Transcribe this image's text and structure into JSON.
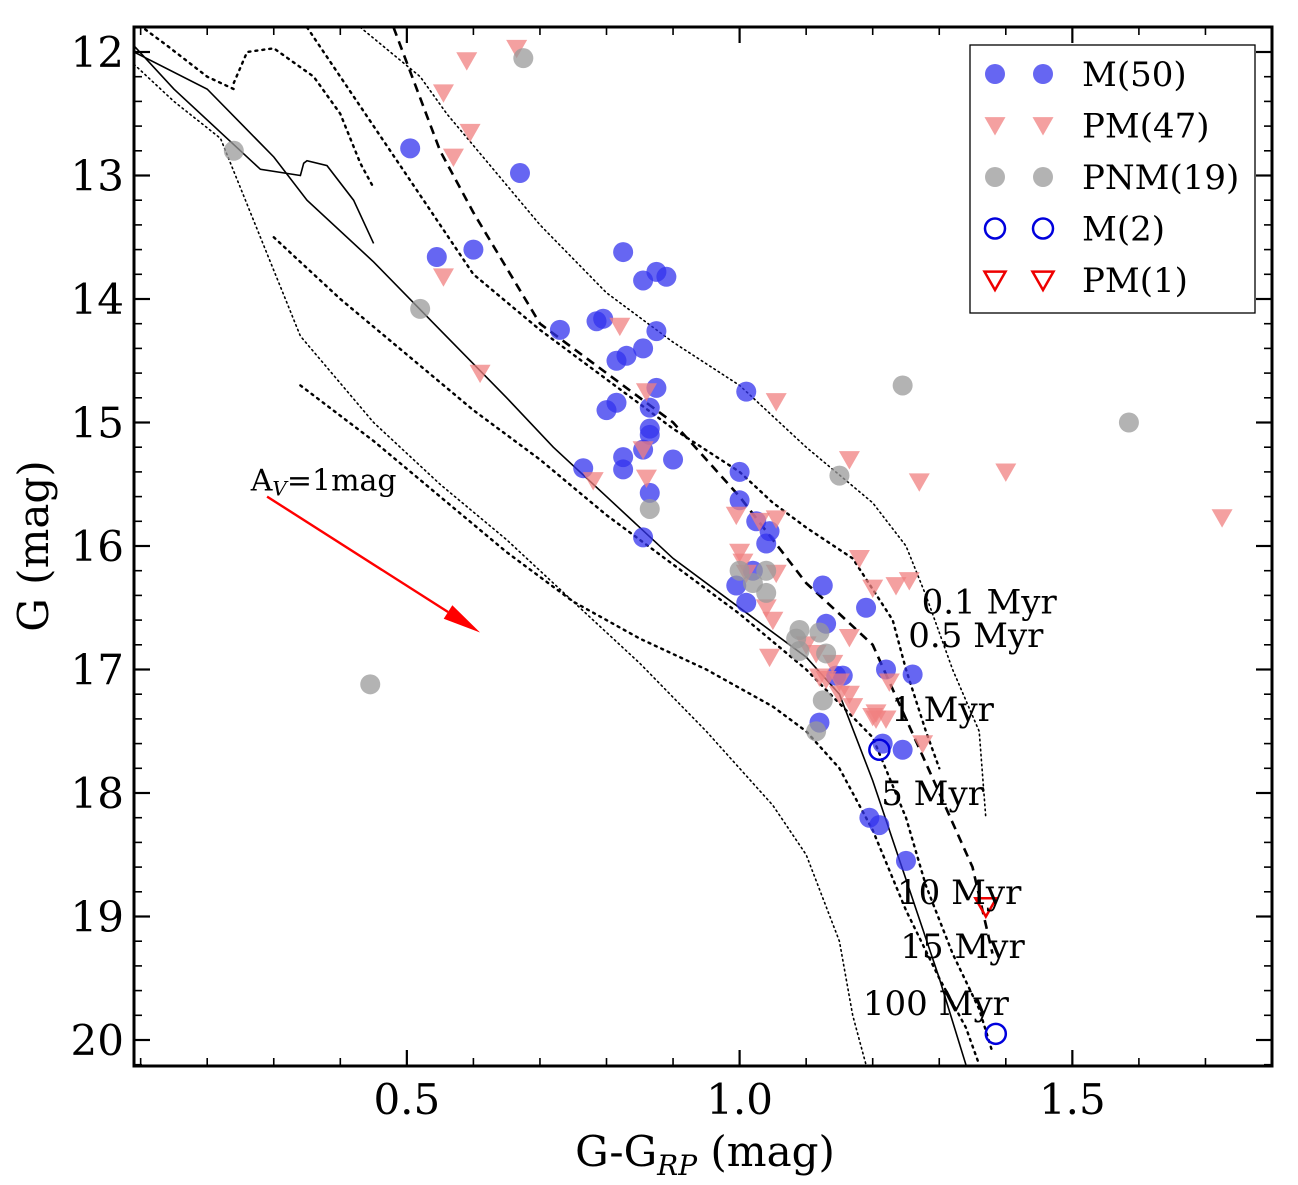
{
  "chart_data": {
    "type": "scatter",
    "title": "",
    "xlabel_main": "G-G",
    "xlabel_sub": "RP",
    "xlabel_unit": " (mag)",
    "ylabel": "G (mag)",
    "xlim": [
      0.09,
      1.8
    ],
    "ylim": [
      20.2,
      11.8
    ],
    "xticks": [
      0.5,
      1.0,
      1.5
    ],
    "xtick_labels": [
      "0.5",
      "1.0",
      "1.5"
    ],
    "yticks": [
      12,
      13,
      14,
      15,
      16,
      17,
      18,
      19,
      20
    ],
    "ytick_labels": [
      "12",
      "13",
      "14",
      "15",
      "16",
      "17",
      "18",
      "19",
      "20"
    ],
    "legend_position": "top-right",
    "series": [
      {
        "name": "M(50)",
        "marker": "circle",
        "filled": true,
        "color": "#3333ee",
        "points": [
          [
            0.505,
            12.78
          ],
          [
            0.67,
            12.98
          ],
          [
            0.545,
            13.66
          ],
          [
            0.6,
            13.6
          ],
          [
            0.825,
            13.62
          ],
          [
            0.855,
            13.85
          ],
          [
            0.875,
            13.78
          ],
          [
            0.89,
            13.82
          ],
          [
            0.73,
            14.25
          ],
          [
            0.785,
            14.18
          ],
          [
            0.795,
            14.16
          ],
          [
            0.875,
            14.26
          ],
          [
            0.83,
            14.46
          ],
          [
            0.815,
            14.5
          ],
          [
            0.855,
            14.4
          ],
          [
            0.8,
            14.9
          ],
          [
            0.815,
            14.84
          ],
          [
            0.865,
            14.88
          ],
          [
            0.875,
            14.72
          ],
          [
            1.01,
            14.75
          ],
          [
            0.865,
            15.05
          ],
          [
            0.865,
            15.1
          ],
          [
            0.855,
            15.22
          ],
          [
            0.825,
            15.28
          ],
          [
            0.825,
            15.38
          ],
          [
            0.765,
            15.37
          ],
          [
            0.9,
            15.3
          ],
          [
            0.865,
            15.57
          ],
          [
            0.855,
            15.93
          ],
          [
            1.0,
            15.4
          ],
          [
            1.0,
            15.63
          ],
          [
            1.025,
            15.8
          ],
          [
            1.045,
            15.88
          ],
          [
            1.04,
            15.98
          ],
          [
            0.995,
            16.32
          ],
          [
            1.02,
            16.2
          ],
          [
            1.01,
            16.46
          ],
          [
            1.125,
            16.32
          ],
          [
            1.19,
            16.5
          ],
          [
            1.13,
            16.63
          ],
          [
            1.155,
            17.05
          ],
          [
            1.22,
            17.0
          ],
          [
            1.26,
            17.04
          ],
          [
            1.12,
            17.43
          ],
          [
            1.215,
            17.6
          ],
          [
            1.245,
            17.65
          ],
          [
            1.195,
            18.2
          ],
          [
            1.21,
            18.26
          ],
          [
            1.25,
            18.55
          ],
          [
            1.145,
            17.05
          ]
        ]
      },
      {
        "name": "PM(47)",
        "marker": "triangle-down",
        "filled": true,
        "color": "#f08080",
        "points": [
          [
            0.555,
            12.33
          ],
          [
            0.59,
            12.07
          ],
          [
            0.665,
            11.97
          ],
          [
            0.57,
            12.85
          ],
          [
            0.595,
            12.65
          ],
          [
            0.555,
            13.82
          ],
          [
            0.61,
            14.6
          ],
          [
            0.82,
            14.22
          ],
          [
            0.86,
            14.75
          ],
          [
            0.855,
            15.22
          ],
          [
            0.86,
            15.45
          ],
          [
            0.78,
            15.47
          ],
          [
            1.055,
            14.83
          ],
          [
            1.165,
            15.3
          ],
          [
            1.4,
            15.4
          ],
          [
            1.27,
            15.48
          ],
          [
            1.725,
            15.77
          ],
          [
            0.995,
            15.75
          ],
          [
            1.03,
            15.8
          ],
          [
            1.055,
            15.78
          ],
          [
            1.0,
            16.05
          ],
          [
            1.005,
            16.13
          ],
          [
            1.01,
            16.22
          ],
          [
            1.055,
            16.22
          ],
          [
            1.18,
            16.1
          ],
          [
            1.2,
            16.34
          ],
          [
            1.235,
            16.32
          ],
          [
            1.255,
            16.28
          ],
          [
            1.04,
            16.5
          ],
          [
            1.05,
            16.6
          ],
          [
            1.045,
            16.9
          ],
          [
            1.1,
            16.8
          ],
          [
            1.115,
            16.87
          ],
          [
            1.12,
            17.06
          ],
          [
            1.165,
            16.74
          ],
          [
            1.14,
            16.95
          ],
          [
            1.15,
            17.1
          ],
          [
            1.165,
            17.2
          ],
          [
            1.17,
            17.3
          ],
          [
            1.205,
            17.4
          ],
          [
            1.22,
            17.4
          ],
          [
            1.2,
            17.38
          ],
          [
            1.225,
            17.1
          ],
          [
            1.275,
            17.6
          ],
          [
            1.15,
            17.2
          ],
          [
            1.13,
            17.08
          ],
          [
            1.205,
            17.35
          ]
        ]
      },
      {
        "name": "PNM(19)",
        "marker": "circle",
        "filled": true,
        "color": "#999999",
        "points": [
          [
            0.24,
            12.8
          ],
          [
            0.675,
            12.05
          ],
          [
            0.52,
            14.08
          ],
          [
            0.445,
            17.12
          ],
          [
            0.865,
            15.7
          ],
          [
            1.245,
            14.7
          ],
          [
            1.15,
            15.43
          ],
          [
            1.585,
            15.0
          ],
          [
            1.0,
            16.2
          ],
          [
            1.04,
            16.38
          ],
          [
            1.04,
            16.2
          ],
          [
            1.09,
            16.68
          ],
          [
            1.085,
            16.75
          ],
          [
            1.09,
            16.85
          ],
          [
            1.12,
            16.7
          ],
          [
            1.13,
            16.87
          ],
          [
            1.125,
            17.25
          ],
          [
            1.115,
            17.5
          ],
          [
            1.02,
            16.3
          ]
        ]
      },
      {
        "name": "M(2)",
        "marker": "circle",
        "filled": false,
        "color": "#0000dd",
        "points": [
          [
            1.21,
            17.65
          ],
          [
            1.385,
            19.95
          ]
        ]
      },
      {
        "name": "PM(1)",
        "marker": "triangle-down",
        "filled": false,
        "color": "#ee0000",
        "points": [
          [
            1.37,
            18.92
          ]
        ]
      }
    ],
    "isochrones": [
      {
        "name": "0.1 Myr",
        "style": "dotted-thin",
        "points": [
          [
            0.43,
            11.8
          ],
          [
            0.52,
            12.2
          ],
          [
            0.56,
            12.5
          ],
          [
            0.7,
            13.4
          ],
          [
            0.8,
            13.95
          ],
          [
            0.9,
            14.35
          ],
          [
            1.0,
            14.7
          ],
          [
            1.05,
            14.95
          ],
          [
            1.1,
            15.2
          ],
          [
            1.2,
            15.65
          ],
          [
            1.25,
            16.0
          ],
          [
            1.28,
            16.4
          ],
          [
            1.32,
            17.0
          ],
          [
            1.36,
            17.5
          ],
          [
            1.37,
            18.2
          ]
        ]
      },
      {
        "name": "0.5 Myr",
        "style": "dotted",
        "points": [
          [
            0.35,
            11.8
          ],
          [
            0.45,
            12.6
          ],
          [
            0.5,
            13.0
          ],
          [
            0.6,
            13.8
          ],
          [
            0.7,
            14.25
          ],
          [
            0.8,
            14.65
          ],
          [
            0.9,
            15.05
          ],
          [
            1.0,
            15.4
          ],
          [
            1.05,
            15.65
          ],
          [
            1.1,
            15.85
          ],
          [
            1.17,
            16.1
          ],
          [
            1.23,
            16.6
          ],
          [
            1.25,
            17.0
          ],
          [
            1.28,
            17.5
          ],
          [
            1.3,
            17.8
          ]
        ]
      },
      {
        "name": "1 Myr",
        "style": "dashed",
        "points": [
          [
            0.48,
            11.8
          ],
          [
            0.55,
            12.8
          ],
          [
            0.6,
            13.3
          ],
          [
            0.7,
            14.2
          ],
          [
            0.8,
            14.6
          ],
          [
            0.9,
            15.0
          ],
          [
            1.0,
            15.6
          ],
          [
            1.1,
            16.3
          ],
          [
            1.2,
            16.8
          ],
          [
            1.25,
            17.4
          ],
          [
            1.3,
            18.0
          ],
          [
            1.35,
            18.6
          ],
          [
            1.38,
            19.3
          ]
        ]
      },
      {
        "name": "5 Myr",
        "style": "dotted",
        "points": [
          [
            0.3,
            13.5
          ],
          [
            0.4,
            14.0
          ],
          [
            0.5,
            14.45
          ],
          [
            0.6,
            14.9
          ],
          [
            0.7,
            15.3
          ],
          [
            0.8,
            15.75
          ],
          [
            0.9,
            16.15
          ],
          [
            1.0,
            16.55
          ],
          [
            1.1,
            17.0
          ],
          [
            1.2,
            17.55
          ],
          [
            1.25,
            18.2
          ],
          [
            1.28,
            18.75
          ],
          [
            1.32,
            19.3
          ],
          [
            1.36,
            19.75
          ],
          [
            1.38,
            20.1
          ]
        ]
      },
      {
        "name": "10 Myr",
        "style": "dotted",
        "points": [
          [
            0.34,
            14.7
          ],
          [
            0.45,
            15.15
          ],
          [
            0.55,
            15.6
          ],
          [
            0.65,
            16.05
          ],
          [
            0.75,
            16.45
          ],
          [
            0.85,
            16.75
          ],
          [
            0.95,
            17.0
          ],
          [
            1.05,
            17.3
          ],
          [
            1.1,
            17.5
          ],
          [
            1.15,
            17.8
          ],
          [
            1.2,
            18.3
          ],
          [
            1.25,
            18.95
          ],
          [
            1.3,
            19.5
          ],
          [
            1.34,
            19.9
          ],
          [
            1.36,
            20.2
          ]
        ]
      },
      {
        "name": "15 Myr",
        "style": "solid",
        "points": [
          [
            0.09,
            12.0
          ],
          [
            0.2,
            12.3
          ],
          [
            0.3,
            12.85
          ],
          [
            0.35,
            13.2
          ],
          [
            0.45,
            13.7
          ],
          [
            0.55,
            14.25
          ],
          [
            0.65,
            14.8
          ],
          [
            0.72,
            15.2
          ],
          [
            0.8,
            15.6
          ],
          [
            0.9,
            16.1
          ],
          [
            1.0,
            16.5
          ],
          [
            1.1,
            16.9
          ],
          [
            1.15,
            17.2
          ],
          [
            1.2,
            17.9
          ],
          [
            1.25,
            18.7
          ],
          [
            1.3,
            19.5
          ],
          [
            1.34,
            20.2
          ]
        ]
      },
      {
        "name": "100 Myr",
        "style": "dotted-thin",
        "points": [
          [
            0.09,
            12.1
          ],
          [
            0.15,
            12.4
          ],
          [
            0.22,
            12.7
          ],
          [
            0.28,
            13.5
          ],
          [
            0.34,
            14.3
          ],
          [
            0.45,
            15.0
          ],
          [
            0.55,
            15.5
          ],
          [
            0.65,
            15.95
          ],
          [
            0.75,
            16.45
          ],
          [
            0.85,
            16.95
          ],
          [
            0.95,
            17.5
          ],
          [
            1.05,
            18.1
          ],
          [
            1.1,
            18.5
          ],
          [
            1.15,
            19.2
          ],
          [
            1.17,
            19.8
          ],
          [
            1.19,
            20.2
          ]
        ]
      }
    ],
    "extra_curves": [
      {
        "style": "dotted",
        "points": [
          [
            0.09,
            11.75
          ],
          [
            0.14,
            11.95
          ],
          [
            0.2,
            12.2
          ],
          [
            0.24,
            12.3
          ]
        ]
      },
      {
        "style": "dotted",
        "points": [
          [
            0.24,
            12.25
          ],
          [
            0.26,
            12.0
          ],
          [
            0.3,
            11.97
          ],
          [
            0.36,
            12.2
          ],
          [
            0.4,
            12.5
          ],
          [
            0.43,
            12.9
          ],
          [
            0.45,
            13.1
          ]
        ]
      },
      {
        "style": "solid",
        "points": [
          [
            0.09,
            11.95
          ],
          [
            0.15,
            12.3
          ],
          [
            0.22,
            12.65
          ],
          [
            0.28,
            12.95
          ],
          [
            0.34,
            13.0
          ],
          [
            0.345,
            12.9
          ],
          [
            0.35,
            12.88
          ],
          [
            0.38,
            12.92
          ],
          [
            0.42,
            13.2
          ],
          [
            0.45,
            13.55
          ]
        ]
      }
    ],
    "annotations": [
      {
        "text": "0.1 Myr",
        "x": 1.375,
        "y": 16.45
      },
      {
        "text": "0.5 Myr",
        "x": 1.355,
        "y": 16.72
      },
      {
        "text": "1 Myr",
        "x": 1.305,
        "y": 17.32
      },
      {
        "text": "5 Myr",
        "x": 1.29,
        "y": 18.0
      },
      {
        "text": "10 Myr",
        "x": 1.33,
        "y": 18.8
      },
      {
        "text": "15 Myr",
        "x": 1.335,
        "y": 19.24
      },
      {
        "text": "100 Myr",
        "x": 1.295,
        "y": 19.7
      }
    ],
    "reddening_vector": {
      "label_main": "A",
      "label_sub": "V",
      "label_rest": "=1mag",
      "from": [
        0.29,
        15.6
      ],
      "to": [
        0.61,
        16.7
      ],
      "label_at": [
        0.375,
        15.55
      ],
      "color": "#ff0000"
    }
  }
}
